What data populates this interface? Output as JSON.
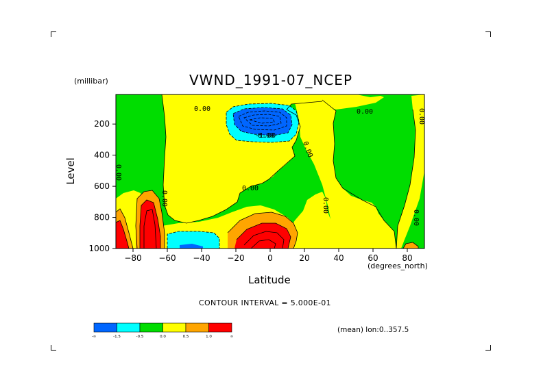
{
  "chart_data": {
    "type": "contour",
    "title": "VWND_1991-07_NCEP",
    "xlabel": "Latitude",
    "ylabel": "Level",
    "x_unit": "(degrees_north)",
    "y_unit": "(millibar)",
    "xlim": [
      -90,
      90
    ],
    "ylim": [
      1000,
      10
    ],
    "x_ticks": [
      -80,
      -60,
      -40,
      -20,
      0,
      20,
      40,
      60,
      80
    ],
    "y_ticks": [
      200,
      400,
      600,
      800,
      1000
    ],
    "contour_interval_text": "CONTOUR INTERVAL = 5.000E-01",
    "subtitle_info": "(mean) lon:0..357.5",
    "contour_labels": [
      "0.00",
      "0.00",
      "0.00",
      "0.00",
      "0.00",
      "0.00",
      "0.00",
      "0.00",
      "0.00",
      "0.00",
      "-1.00"
    ],
    "colorbar": {
      "boundaries": [
        "-∞",
        "-1.5",
        "-0.5",
        "0.0",
        "0.5",
        "1.0",
        "∞"
      ],
      "colors": [
        "#0066ff",
        "#00ffff",
        "#00dd00",
        "#ffff00",
        "#ffa500",
        "#ff0000"
      ]
    },
    "color_ranges": [
      {
        "range": "< -1.5",
        "color": "#0066ff"
      },
      {
        "range": "-1.5 to -0.5",
        "color": "#00ffff"
      },
      {
        "range": "-0.5 to 0.0",
        "color": "#00dd00"
      },
      {
        "range": "0.0 to 0.5",
        "color": "#ffff00"
      },
      {
        "range": "0.5 to 1.0",
        "color": "#ffa500"
      },
      {
        "range": "> 1.0",
        "color": "#ff0000"
      }
    ]
  }
}
